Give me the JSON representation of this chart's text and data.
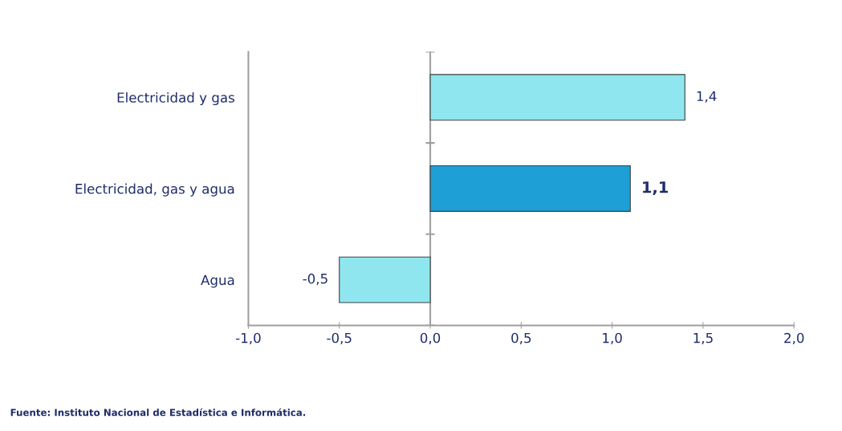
{
  "chart_data": {
    "type": "bar",
    "orientation": "horizontal",
    "categories": [
      "Electricidad y gas",
      "Electricidad, gas y agua",
      "Agua"
    ],
    "values": [
      1.4,
      1.1,
      -0.5
    ],
    "colors": [
      "#8fe6ee",
      "#1e9fd6",
      "#8fe6ee"
    ],
    "value_labels": [
      "1,4",
      "1,1",
      "-0,5"
    ],
    "xlim": [
      -1,
      2
    ],
    "xticks": [
      {
        "value": -1,
        "label": "-1,0"
      },
      {
        "value": -0.5,
        "label": "-0,5"
      },
      {
        "value": 0,
        "label": "0,0"
      },
      {
        "value": 0.5,
        "label": "0,5"
      },
      {
        "value": 1,
        "label": "1,0"
      },
      {
        "value": 1.5,
        "label": "1,5"
      },
      {
        "value": 2,
        "label": "2,0"
      }
    ],
    "ref_lines": [
      {
        "axis": "x",
        "value": 0,
        "color": "#a0a0a0"
      }
    ],
    "grid": false,
    "legend": false,
    "annotations": [
      "Fuente: Instituto Nacional de Estadística e Informática."
    ]
  }
}
